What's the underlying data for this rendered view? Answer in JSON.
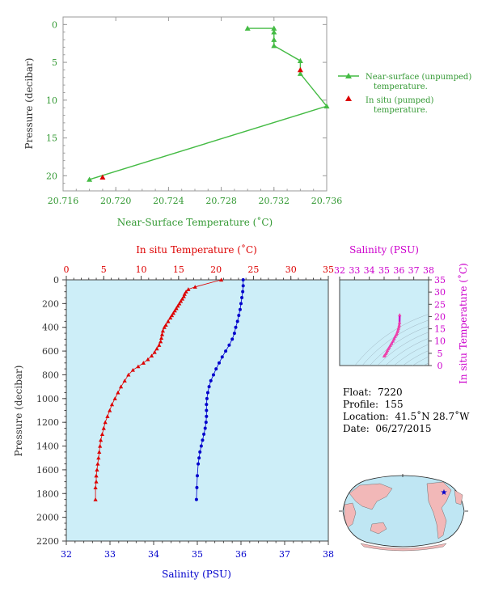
{
  "top_chart": {
    "ylabel": "Pressure (decibar)",
    "xlabel": "Near-Surface Temperature (˚C)",
    "xlim": [
      20.716,
      20.736
    ],
    "ylim": [
      0,
      22
    ],
    "xticks": [
      "20.716",
      "20.720",
      "20.724",
      "20.728",
      "20.732",
      "20.736"
    ],
    "yticks": [
      "0",
      "5",
      "10",
      "15",
      "20"
    ],
    "legend": [
      {
        "label_line1": "Near-surface (unpumped)",
        "label_line2": "temperature.",
        "color": "#44bb44",
        "marker": "triangle-line"
      },
      {
        "label_line1": "In situ (pumped)",
        "label_line2": "temperature.",
        "color": "#dd0000",
        "marker": "triangle"
      }
    ]
  },
  "profile_chart": {
    "ylabel": "Pressure (decibar)",
    "top_xlabel": "In situ Temperature (˚C)",
    "bottom_xlabel": "Salinity (PSU)",
    "temp_ticks": [
      "0",
      "5",
      "10",
      "15",
      "20",
      "25",
      "30",
      "35"
    ],
    "sal_ticks": [
      "32",
      "33",
      "34",
      "35",
      "36",
      "37",
      "38"
    ],
    "pressure_ticks": [
      "0",
      "200",
      "400",
      "600",
      "800",
      "1000",
      "1200",
      "1400",
      "1600",
      "1800",
      "2000",
      "2200"
    ],
    "temp_color": "#dd0000",
    "sal_color": "#0000cc",
    "bg_color": "#cdeef8"
  },
  "ts_chart": {
    "title": "Salinity (PSU)",
    "ylabel": "In situ Temperature (˚C)",
    "xticks": [
      "32",
      "33",
      "34",
      "35",
      "36",
      "37",
      "38"
    ],
    "yticks": [
      "0",
      "5",
      "10",
      "15",
      "20",
      "25",
      "30",
      "35"
    ],
    "color": "#cc00cc"
  },
  "info": {
    "float_label": "Float:",
    "float_value": "7220",
    "profile_label": "Profile:",
    "profile_value": "155",
    "location_label": "Location:",
    "location_value": "41.5˚N  28.7˚W",
    "date_label": "Date:",
    "date_value": "06/27/2015"
  },
  "chart_data": [
    {
      "type": "line",
      "xlabel": "Near-Surface Temperature (˚C)",
      "ylabel": "Pressure (decibar)",
      "xlim": [
        20.716,
        20.736
      ],
      "ylim": [
        22,
        0
      ],
      "series": [
        {
          "name": "Near-surface (unpumped) temperature.",
          "x": [
            20.73,
            20.732,
            20.732,
            20.732,
            20.732,
            20.734,
            20.734,
            20.736,
            20.718
          ],
          "y": [
            0.5,
            0.5,
            1.0,
            2.0,
            2.8,
            4.8,
            6.5,
            10.8,
            20.5
          ]
        },
        {
          "name": "In situ (pumped) temperature.",
          "x": [
            20.734,
            20.719
          ],
          "y": [
            6.0,
            20.2
          ]
        }
      ]
    },
    {
      "type": "scatter",
      "xlabel": "In situ Temperature (˚C)",
      "ylabel": "Pressure (decibar)",
      "xlim": [
        0,
        35
      ],
      "ylim": [
        2200,
        0
      ],
      "series": [
        {
          "name": "In situ Temperature (˚C)",
          "x": [
            20.7,
            17.2,
            16.3,
            16.0,
            15.8,
            15.7,
            15.5,
            15.3,
            15.1,
            14.9,
            14.7,
            14.5,
            14.3,
            14.1,
            13.9,
            13.6,
            13.3,
            13.1,
            12.9,
            12.8,
            12.7,
            12.6,
            12.4,
            12.1,
            11.8,
            11.4,
            10.9,
            10.3,
            9.6,
            8.9,
            8.3,
            7.8,
            7.3,
            6.9,
            6.5,
            6.1,
            5.8,
            5.5,
            5.2,
            5.0,
            4.8,
            4.6,
            4.5,
            4.4,
            4.3,
            4.2,
            4.1,
            4.0,
            4.0,
            3.9,
            3.9
          ],
          "y": [
            0,
            60,
            80,
            100,
            120,
            140,
            160,
            180,
            200,
            220,
            240,
            260,
            280,
            300,
            320,
            350,
            380,
            400,
            430,
            460,
            490,
            520,
            550,
            580,
            610,
            640,
            670,
            700,
            730,
            760,
            800,
            850,
            900,
            950,
            1000,
            1050,
            1100,
            1150,
            1200,
            1250,
            1300,
            1350,
            1400,
            1450,
            1500,
            1550,
            1600,
            1650,
            1700,
            1750,
            1850
          ]
        }
      ]
    },
    {
      "type": "scatter",
      "xlabel": "Salinity (PSU)",
      "ylabel": "Pressure (decibar)",
      "xlim": [
        32,
        38
      ],
      "ylim": [
        2200,
        0
      ],
      "series": [
        {
          "name": "Salinity (PSU)",
          "x": [
            36.05,
            36.05,
            36.04,
            36.02,
            36.0,
            35.98,
            35.95,
            35.92,
            35.88,
            35.85,
            35.8,
            35.73,
            35.65,
            35.57,
            35.5,
            35.43,
            35.37,
            35.31,
            35.27,
            35.24,
            35.22,
            35.21,
            35.21,
            35.21,
            35.2,
            35.18,
            35.15,
            35.12,
            35.09,
            35.06,
            35.04,
            35.02,
            35.0,
            34.99,
            34.98
          ],
          "y": [
            0,
            50,
            100,
            150,
            200,
            250,
            300,
            350,
            400,
            450,
            500,
            550,
            600,
            650,
            700,
            750,
            800,
            850,
            900,
            950,
            1000,
            1050,
            1100,
            1150,
            1200,
            1250,
            1300,
            1350,
            1400,
            1450,
            1500,
            1550,
            1650,
            1750,
            1850
          ]
        }
      ]
    },
    {
      "type": "scatter",
      "xlabel": "Salinity (PSU)",
      "ylabel": "In situ Temperature (˚C)",
      "xlim": [
        32,
        38
      ],
      "ylim": [
        0,
        35
      ],
      "series": [
        {
          "name": "T-S",
          "x": [
            36.05,
            36.04,
            36.02,
            36.0,
            35.97,
            35.94,
            35.9,
            35.86,
            35.82,
            35.75,
            35.68,
            35.6,
            35.5,
            35.42,
            35.35,
            35.28,
            35.22,
            35.18,
            35.12,
            35.06,
            35.0
          ],
          "y": [
            20.7,
            17.5,
            16.5,
            15.8,
            15.2,
            14.5,
            13.8,
            13.1,
            12.6,
            11.9,
            11.0,
            10.0,
            9.0,
            8.2,
            7.4,
            6.8,
            6.2,
            5.5,
            4.9,
            4.3,
            3.9
          ]
        }
      ]
    }
  ]
}
